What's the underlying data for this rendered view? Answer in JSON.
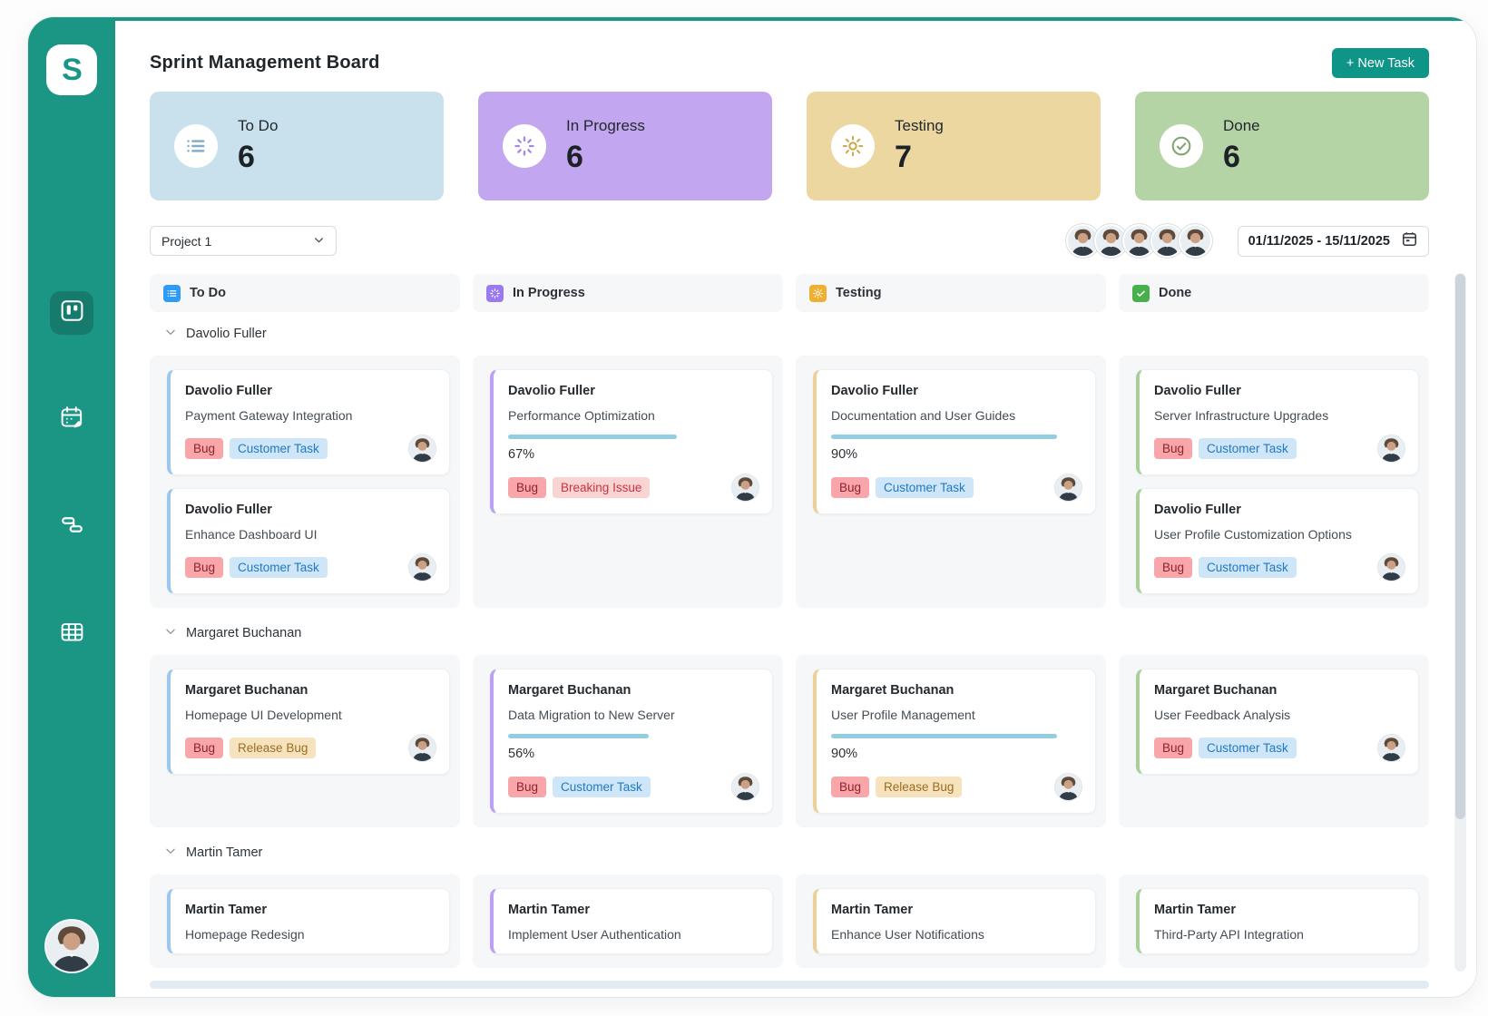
{
  "sidebar": {
    "logo_text": "S"
  },
  "header": {
    "title": "Sprint Management Board",
    "new_task_label": "+ New Task"
  },
  "summary_cards": [
    {
      "label": "To Do",
      "count": "6",
      "bg": "#c9e1ed",
      "icon": "list-icon",
      "icon_color": "#85aec6"
    },
    {
      "label": "In Progress",
      "count": "6",
      "bg": "#c2a7f0",
      "icon": "spinner-icon",
      "icon_color": "#a585ea"
    },
    {
      "label": "Testing",
      "count": "7",
      "bg": "#edd7a0",
      "icon": "gear-icon",
      "icon_color": "#cfa94f"
    },
    {
      "label": "Done",
      "count": "6",
      "bg": "#b5d4a6",
      "icon": "check-circle-icon",
      "icon_color": "#82a571"
    }
  ],
  "filters": {
    "project_selected": "Project 1",
    "assignee_avatars": 5,
    "date_range": "01/11/2025 - 15/11/2025"
  },
  "board": {
    "columns": [
      {
        "label": "To Do",
        "icon": "list-icon",
        "icon_bg": "#2e9cf4",
        "accent": "#9cc6ee"
      },
      {
        "label": "In Progress",
        "icon": "spinner-icon",
        "icon_bg": "#9b7af0",
        "accent": "#bba1f3"
      },
      {
        "label": "Testing",
        "icon": "gear-icon",
        "icon_bg": "#efb031",
        "accent": "#ecd099"
      },
      {
        "label": "Done",
        "icon": "check-icon",
        "icon_bg": "#46b14b",
        "accent": "#a9d09a"
      }
    ],
    "swimlanes": [
      {
        "name": "Davolio Fuller",
        "cells": [
          [
            {
              "assignee": "Davolio Fuller",
              "title": "Payment Gateway Integration",
              "tags": [
                "Bug",
                "Customer Task"
              ]
            },
            {
              "assignee": "Davolio Fuller",
              "title": "Enhance Dashboard UI",
              "tags": [
                "Bug",
                "Customer Task"
              ]
            }
          ],
          [
            {
              "assignee": "Davolio Fuller",
              "title": "Performance Optimization",
              "progress": "67%",
              "tags": [
                "Bug",
                "Breaking Issue"
              ]
            }
          ],
          [
            {
              "assignee": "Davolio Fuller",
              "title": "Documentation and User Guides",
              "progress": "90%",
              "tags": [
                "Bug",
                "Customer Task"
              ]
            }
          ],
          [
            {
              "assignee": "Davolio Fuller",
              "title": "Server Infrastructure Upgrades",
              "tags": [
                "Bug",
                "Customer Task"
              ]
            },
            {
              "assignee": "Davolio Fuller",
              "title": "User Profile Customization Options",
              "tags": [
                "Bug",
                "Customer Task"
              ]
            }
          ]
        ]
      },
      {
        "name": "Margaret Buchanan",
        "cells": [
          [
            {
              "assignee": "Margaret Buchanan",
              "title": "Homepage UI Development",
              "tags": [
                "Bug",
                "Release Bug"
              ]
            }
          ],
          [
            {
              "assignee": "Margaret Buchanan",
              "title": "Data Migration to New Server",
              "progress": "56%",
              "tags": [
                "Bug",
                "Customer Task"
              ]
            }
          ],
          [
            {
              "assignee": "Margaret Buchanan",
              "title": "User Profile Management",
              "progress": "90%",
              "tags": [
                "Bug",
                "Release Bug"
              ]
            }
          ],
          [
            {
              "assignee": "Margaret Buchanan",
              "title": "User Feedback Analysis",
              "tags": [
                "Bug",
                "Customer Task"
              ]
            }
          ]
        ]
      },
      {
        "name": "Martin Tamer",
        "cells": [
          [
            {
              "assignee": "Martin Tamer",
              "title": "Homepage Redesign",
              "tags": []
            }
          ],
          [
            {
              "assignee": "Martin Tamer",
              "title": "Implement User Authentication",
              "tags": []
            }
          ],
          [
            {
              "assignee": "Martin Tamer",
              "title": "Enhance User Notifications",
              "tags": []
            }
          ],
          [
            {
              "assignee": "Martin Tamer",
              "title": "Third-Party API Integration",
              "tags": []
            }
          ]
        ]
      }
    ]
  },
  "tag_styles": {
    "Bug": {
      "bg": "#f8a6aa",
      "fg": "#8e222d"
    },
    "Customer Task": {
      "bg": "#cfe6f8",
      "fg": "#2079c3"
    },
    "Breaking Issue": {
      "bg": "#fad3d3",
      "fg": "#cb3340"
    },
    "Release Bug": {
      "bg": "#f6e3bd",
      "fg": "#9a6c22"
    }
  },
  "colors": {
    "sidebar": "#1b9685",
    "accent_button": "#0f9488",
    "progress_bar": "#93cde1"
  }
}
